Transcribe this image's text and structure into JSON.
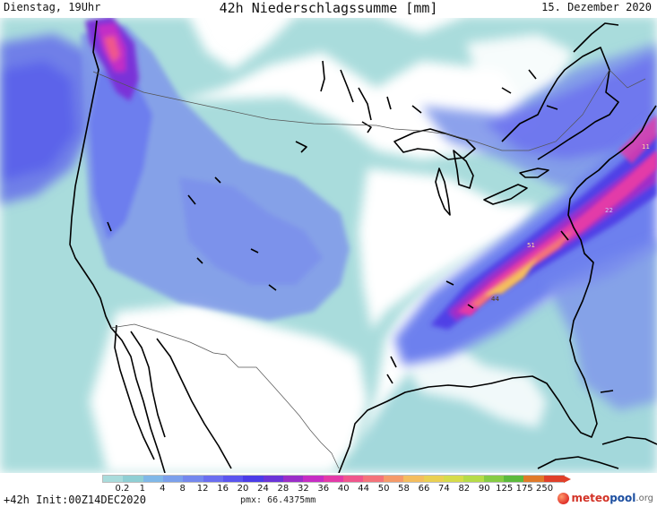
{
  "header": {
    "left": "Dienstag, 19Uhr",
    "title": "42h Niederschlagssumme [mm]",
    "right": "15. Dezember 2020"
  },
  "map": {
    "region": "North America",
    "values": [
      {
        "label": "11",
        "x": 716,
        "y": 148
      },
      {
        "label": "22",
        "x": 675,
        "y": 219
      },
      {
        "label": "51",
        "x": 588,
        "y": 258
      },
      {
        "label": "44",
        "x": 548,
        "y": 318
      }
    ]
  },
  "legend": {
    "labels": [
      "0.2",
      "1",
      "4",
      "8",
      "12",
      "16",
      "20",
      "24",
      "28",
      "32",
      "36",
      "40",
      "44",
      "50",
      "58",
      "66",
      "74",
      "82",
      "90",
      "125",
      "175",
      "250"
    ],
    "colors": [
      "#a9dcdc",
      "#8fcfd4",
      "#80b8e8",
      "#7ba0ec",
      "#7488ee",
      "#6a6ef0",
      "#5a55ef",
      "#4b3ce8",
      "#6a34d8",
      "#9a2ec8",
      "#c62dc4",
      "#e33aa8",
      "#f0568c",
      "#f4737a",
      "#f59a6a",
      "#f4bd5e",
      "#ead052",
      "#d6dc4a",
      "#b6dc48",
      "#86cc44",
      "#5cba3c",
      "#e07a2a",
      "#e0402a"
    ]
  },
  "footer": {
    "init": "+42h Init:00Z14DEC2020",
    "pmx": "pmx: 66.4375mm",
    "logo_meteo": "meteo",
    "logo_pool": "pool",
    "logo_org": ".org"
  }
}
